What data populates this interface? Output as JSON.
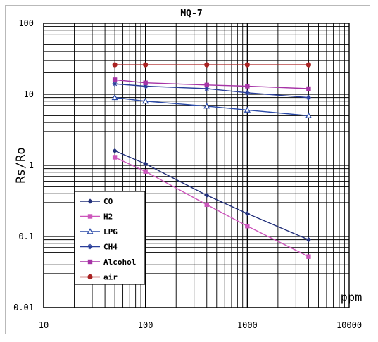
{
  "chart_data": {
    "type": "line",
    "title": "MQ-7",
    "xlabel": "ppm",
    "ylabel": "Rs/Ro",
    "x_scale": "log",
    "y_scale": "log",
    "xlim": [
      10,
      10000
    ],
    "ylim": [
      0.01,
      100
    ],
    "x_ticks": [
      "10",
      "100",
      "1000",
      "10000"
    ],
    "y_ticks": [
      "100",
      "10",
      "1",
      "0.1",
      "0.01"
    ],
    "grid": true,
    "legend_position": "bottom-left",
    "x": [
      50,
      100,
      400,
      1000,
      4000
    ],
    "series": [
      {
        "name": "CO",
        "color": "#22307a",
        "marker": "diamond",
        "values": [
          1.6,
          1.05,
          0.38,
          0.21,
          0.09
        ]
      },
      {
        "name": "H2",
        "color": "#cc55bb",
        "marker": "square",
        "values": [
          1.3,
          0.82,
          0.28,
          0.14,
          0.052
        ]
      },
      {
        "name": "LPG",
        "color": "#2a4aa8",
        "marker": "triangle",
        "values": [
          9.0,
          8.0,
          6.8,
          6.0,
          5.0
        ]
      },
      {
        "name": "CH4",
        "color": "#2a3f9a",
        "marker": "star",
        "values": [
          14.0,
          13.0,
          12.0,
          10.5,
          9.0
        ]
      },
      {
        "name": "Alcohol",
        "color": "#a633a6",
        "marker": "square",
        "values": [
          16.0,
          14.5,
          13.5,
          13.0,
          12.0
        ]
      },
      {
        "name": "air",
        "color": "#aa2222",
        "marker": "circle",
        "values": [
          26.0,
          26.0,
          26.0,
          26.0,
          26.0
        ]
      }
    ],
    "legend": [
      "CO",
      "H2",
      "LPG",
      "CH4",
      "Alcohol",
      "air"
    ]
  }
}
